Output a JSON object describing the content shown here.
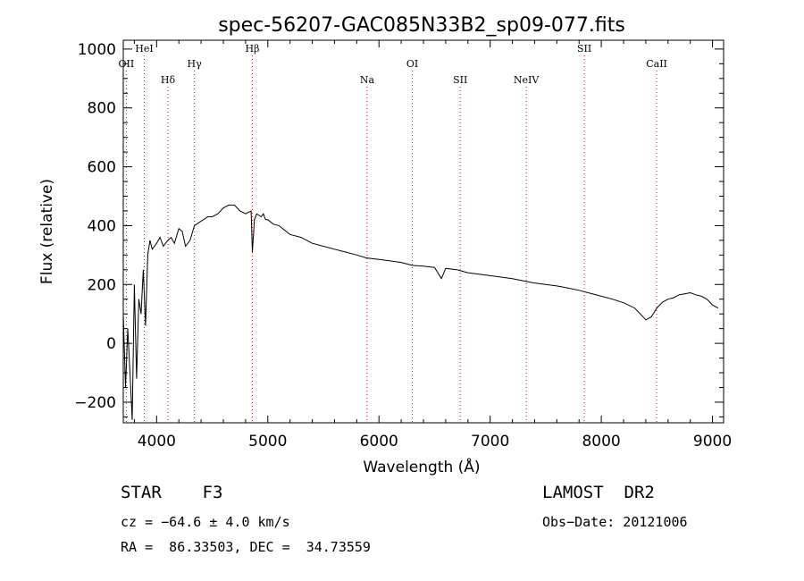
{
  "chart_data": {
    "type": "line",
    "title": "spec-56207-GAC085N33B2_sp09-077.fits",
    "xlabel": "Wavelength (Å)",
    "ylabel": "Flux (relative)",
    "xlim": [
      3700,
      9100
    ],
    "ylim": [
      -270,
      1030
    ],
    "xticks": [
      4000,
      5000,
      6000,
      7000,
      8000,
      9000
    ],
    "xtick_labels": [
      "4000",
      "5000",
      "6000",
      "7000",
      "8000",
      "9000"
    ],
    "yticks": [
      -200,
      0,
      200,
      400,
      600,
      800,
      1000
    ],
    "ytick_labels": [
      "−200",
      "0",
      "200",
      "400",
      "600",
      "800",
      "1000"
    ],
    "grid": false,
    "lines": [
      {
        "label": "OII",
        "wavelength": 3727
      },
      {
        "label": "HeI",
        "wavelength": 3889
      },
      {
        "label": "Hδ",
        "wavelength": 4102
      },
      {
        "label": "Hγ",
        "wavelength": 4340
      },
      {
        "label": "Hβ",
        "wavelength": 4861
      },
      {
        "label": "Na",
        "wavelength": 5893
      },
      {
        "label": "OI",
        "wavelength": 6300
      },
      {
        "label": "SII",
        "wavelength": 6731
      },
      {
        "label": "NeIV",
        "wavelength": 7325
      },
      {
        "label": "SII",
        "wavelength": 7847
      },
      {
        "label": "CaII",
        "wavelength": 8498
      }
    ],
    "series": [
      {
        "x": [
          3700,
          3720,
          3740,
          3760,
          3780,
          3800,
          3820,
          3840,
          3860,
          3880,
          3900,
          3920,
          3940,
          3960,
          3980,
          4000,
          4030,
          4060,
          4100,
          4130,
          4160,
          4200,
          4230,
          4260,
          4300,
          4340,
          4380,
          4420,
          4460,
          4500,
          4550,
          4600,
          4650,
          4700,
          4750,
          4800,
          4850,
          4861,
          4880,
          4900,
          4940,
          4960,
          4980,
          5000,
          5050,
          5100,
          5150,
          5200,
          5300,
          5400,
          5500,
          5600,
          5700,
          5800,
          5890,
          6000,
          6100,
          6200,
          6300,
          6400,
          6500,
          6562,
          6600,
          6700,
          6800,
          6900,
          7000,
          7100,
          7200,
          7300,
          7400,
          7500,
          7600,
          7700,
          7800,
          7900,
          8000,
          8100,
          8200,
          8300,
          8350,
          8400,
          8450,
          8500,
          8550,
          8600,
          8650,
          8700,
          8750,
          8800,
          8850,
          8900,
          8950,
          9000,
          9050
        ],
        "y": [
          100,
          -150,
          50,
          -100,
          -260,
          200,
          -120,
          150,
          100,
          250,
          60,
          300,
          350,
          320,
          330,
          340,
          360,
          330,
          350,
          360,
          340,
          390,
          380,
          330,
          350,
          400,
          410,
          420,
          430,
          430,
          440,
          460,
          470,
          470,
          450,
          440,
          450,
          310,
          420,
          440,
          430,
          440,
          420,
          420,
          405,
          400,
          385,
          370,
          360,
          340,
          330,
          320,
          310,
          300,
          290,
          285,
          280,
          275,
          265,
          262,
          258,
          220,
          255,
          250,
          240,
          235,
          230,
          225,
          220,
          212,
          205,
          200,
          195,
          188,
          180,
          170,
          160,
          150,
          138,
          120,
          100,
          80,
          90,
          120,
          140,
          150,
          155,
          165,
          168,
          172,
          165,
          160,
          150,
          130,
          120
        ]
      }
    ]
  },
  "info": {
    "object": "STAR    F3",
    "survey": "LAMOST  DR2",
    "cz": "cz = −64.6 ± 4.0 km/s",
    "obsdate": "Obs−Date: 20121006",
    "radec": "RA =  86.33503, DEC =  34.73559"
  }
}
